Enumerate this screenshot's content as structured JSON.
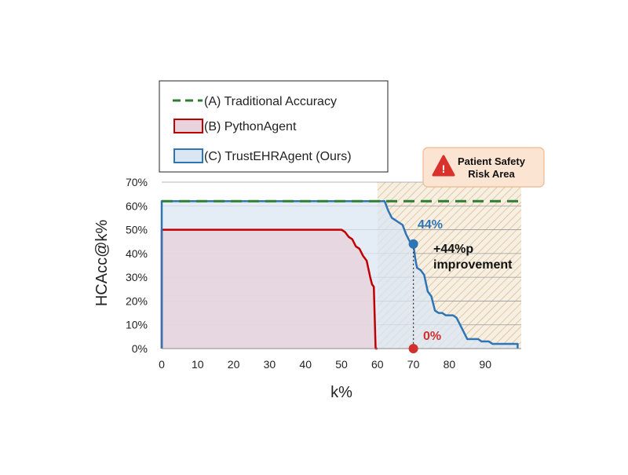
{
  "chart_data": {
    "type": "area",
    "xlabel": "k%",
    "ylabel": "HCAcc@k%",
    "xlim": [
      0,
      100
    ],
    "ylim": [
      0,
      70
    ],
    "xticks": [
      "0",
      "10",
      "20",
      "30",
      "40",
      "50",
      "60",
      "70",
      "80",
      "90"
    ],
    "yticks": [
      "0%",
      "10%",
      "20%",
      "30%",
      "40%",
      "50%",
      "60%",
      "70%"
    ],
    "grid": "horizontal",
    "legend_position": "top-left",
    "series": [
      {
        "name": "(A) Traditional Accuracy",
        "style": "dashed-line",
        "color": "#2e7d32",
        "x": [
          0,
          100
        ],
        "y": [
          62,
          62
        ]
      },
      {
        "name": "(B) PythonAgent",
        "style": "filled-area",
        "color": "#c00000",
        "fill": "#e8d3dc",
        "x": [
          0,
          50,
          51,
          52,
          53,
          54,
          55,
          56,
          57,
          58,
          58.5,
          59,
          59.5,
          60
        ],
        "y": [
          50,
          50,
          49,
          47,
          46,
          43,
          42,
          39,
          37,
          30,
          27,
          26,
          0,
          0
        ]
      },
      {
        "name": "(C) TrustEHRAgent (Ours)",
        "style": "filled-area",
        "color": "#2e75b6",
        "fill": "#dbe6f3",
        "x": [
          0,
          62,
          63,
          64,
          65,
          66,
          67,
          68,
          69,
          70,
          70.5,
          71,
          72,
          73,
          74,
          75,
          76,
          77,
          78,
          79,
          80,
          81,
          82,
          83,
          84,
          85,
          86,
          87,
          88,
          89,
          90,
          91,
          92,
          93,
          94,
          95,
          96,
          97,
          98,
          99
        ],
        "y": [
          62,
          62,
          58,
          55,
          54,
          53,
          52,
          48,
          45,
          44,
          38,
          34,
          33,
          31,
          24,
          22,
          16,
          15,
          15,
          14,
          14,
          14,
          13,
          10,
          7,
          4,
          4,
          4,
          4,
          3,
          3,
          3,
          2,
          2,
          2,
          2,
          2,
          2,
          2,
          2
        ]
      }
    ],
    "risk_area": {
      "x_start": 60,
      "x_end": 100,
      "label_line1": "Patient Safety",
      "label_line2": "Risk Area"
    },
    "annotations": {
      "trust_value_label": "44%",
      "python_value_label": "0%",
      "improvement_line1": "+44%p",
      "improvement_line2": "improvement",
      "marker_x": 70,
      "trust_marker_y": 44,
      "python_marker_y": 0
    }
  }
}
